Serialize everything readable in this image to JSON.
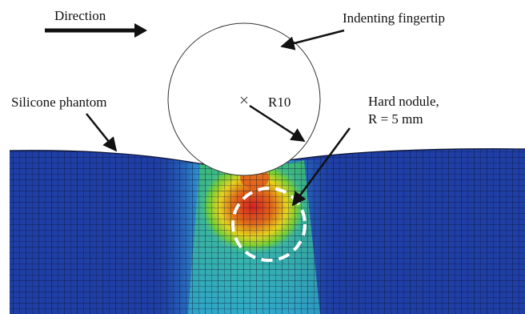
{
  "labels": {
    "direction": "Direction",
    "fingertip": "Indenting fingertip",
    "phantom": "Silicone phantom",
    "radius": "R10",
    "nodule_line1": "Hard nodule,",
    "nodule_line2": "R = 5 mm"
  },
  "colors": {
    "mesh_base": "#1f3fa6",
    "mesh_lines": "#0a0f2a",
    "stress_high": "#d61f1f",
    "stress_mid": "#f0e020",
    "stress_low": "#2fb8c8",
    "nodule_outline": "#ffffff"
  }
}
